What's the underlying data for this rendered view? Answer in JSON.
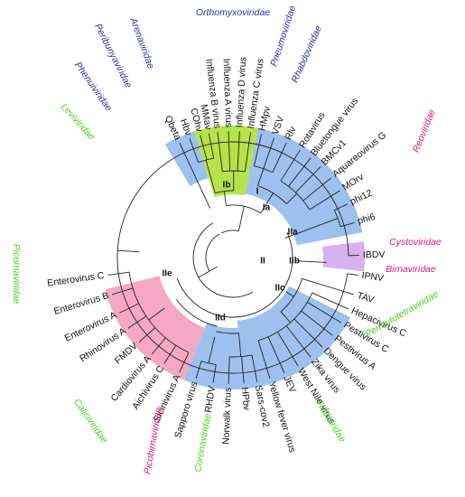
{
  "colors": {
    "green_band": "#b5e34a",
    "blue_band": "#9dc0ee",
    "pink_band": "#f4a8c4",
    "purple_band": "#d7b1ee",
    "family_blue": "#2c2fa4",
    "family_magenta": "#d6197a",
    "family_green": "#46d21c",
    "branch": "#222222"
  },
  "leaves": [
    "Qbeta",
    "Hbv",
    "COhv",
    "MMav",
    "Influenza B virus",
    "Influenza A virus",
    "Influenza D virus",
    "Influenza C virus",
    "HMpv",
    "VSV",
    "Rlv",
    "Rotavirus",
    "Bluetongue virus",
    "BMCv1",
    "Aquareovirus G",
    "MOrv",
    "phi12",
    "phi6",
    "IBDV",
    "IPNV",
    "TAV",
    "Hepacivirus C",
    "Pestivirus C",
    "Pestivirus A",
    "Dengue virus",
    "Zika virus",
    "West Nile virus",
    "JEV",
    "Yellow fever virus",
    "Sars-cov2",
    "HPbv",
    "Norwalk virus",
    "RHDV",
    "Sapporo virus",
    "Sicinivirus A",
    "Aichivirus C",
    "Cardiovirus A",
    "FMDV",
    "Rhinovirus A",
    "Enterovirus A",
    "Enterovirus B",
    "Enterovirus C"
  ],
  "families": [
    {
      "name": "Orthomyxoviridae",
      "color": "family_blue"
    },
    {
      "name": "Pneumoviridae",
      "color": "family_blue"
    },
    {
      "name": "Rhabdoviridae",
      "color": "family_blue"
    },
    {
      "name": "Arenaviridae",
      "color": "family_blue"
    },
    {
      "name": "Peribunyaviridae",
      "color": "family_blue"
    },
    {
      "name": "Phenuiviridae",
      "color": "family_blue"
    },
    {
      "name": "Leviviridae",
      "color": "family_green"
    },
    {
      "name": "Reoviridae",
      "color": "family_magenta"
    },
    {
      "name": "Cystoviridae",
      "color": "family_magenta"
    },
    {
      "name": "Birnaviridae",
      "color": "family_magenta"
    },
    {
      "name": "Permutotetraviridae",
      "color": "family_green"
    },
    {
      "name": "Flaviviridae",
      "color": "family_green"
    },
    {
      "name": "Coronaviridae",
      "color": "family_green"
    },
    {
      "name": "Picobirnaviridae",
      "color": "family_magenta"
    },
    {
      "name": "Caliciviridae",
      "color": "family_green"
    },
    {
      "name": "Picornaviridae",
      "color": "family_green"
    }
  ],
  "nodes": [
    "Ib",
    "I",
    "Ia",
    "IIa",
    "II",
    "IIb",
    "IIc",
    "IIe",
    "IId"
  ]
}
